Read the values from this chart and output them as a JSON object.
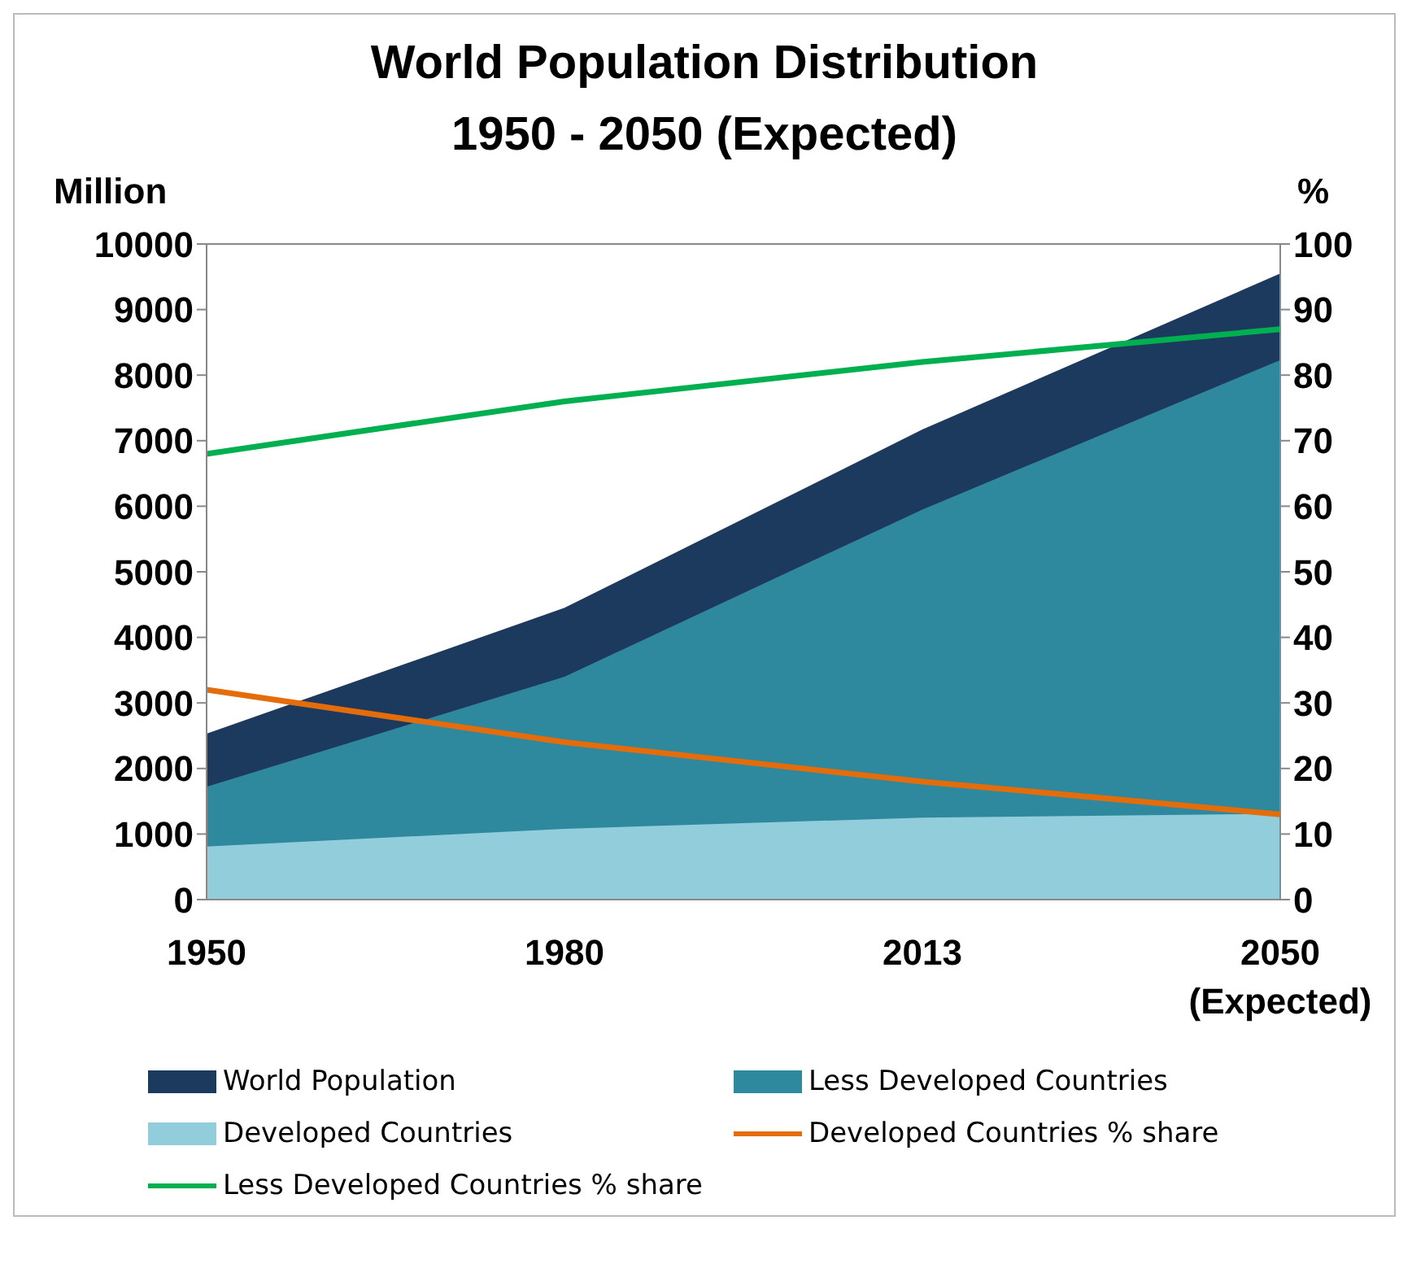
{
  "chart_data": {
    "type": "area",
    "title": "World Population Distribution\n1950 - 2050 (Expected)",
    "ylabel": "Million",
    "y2label": "%",
    "categories": [
      "1950",
      "1980",
      "2013",
      "2050\n(Expected)"
    ],
    "series": [
      {
        "name": "World Population",
        "color": "#1b3a5e",
        "values": [
          2530,
          4450,
          7170,
          9550
        ]
      },
      {
        "name": "Less Developed Countries",
        "color": "#2e889e",
        "values": [
          1720,
          3400,
          5950,
          8230
        ]
      },
      {
        "name": "Developed Countries",
        "color": "#92cddc",
        "values": [
          810,
          1080,
          1250,
          1310
        ]
      },
      {
        "name": "Developed Countries % share",
        "type": "line",
        "axis": "y2",
        "color": "#e46c0a",
        "values": [
          32,
          24,
          18,
          13
        ]
      },
      {
        "name": "Less Developed Countries % share",
        "type": "line",
        "axis": "y2",
        "color": "#00b050",
        "values": [
          68,
          76,
          82,
          87
        ]
      }
    ],
    "ylim": [
      0,
      10000
    ],
    "yticks": [
      0,
      1000,
      2000,
      3000,
      4000,
      5000,
      6000,
      7000,
      8000,
      9000,
      10000
    ],
    "y2lim": [
      0,
      100
    ],
    "y2ticks": [
      0,
      10,
      20,
      30,
      40,
      50,
      60,
      70,
      80,
      90,
      100
    ],
    "grid": false,
    "legend": "bottom",
    "marker": "none",
    "line_style": "solid"
  }
}
